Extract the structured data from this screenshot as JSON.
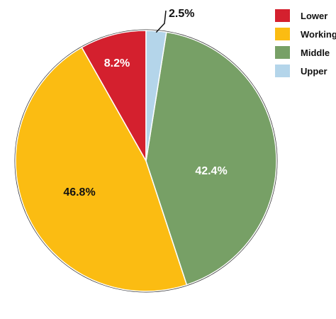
{
  "chart_data": {
    "type": "pie",
    "categories": [
      "Lower",
      "Working",
      "Middle",
      "Upper"
    ],
    "values": [
      8.2,
      46.8,
      42.4,
      2.5
    ],
    "value_labels": [
      "8.2%",
      "46.8%",
      "42.4%",
      "2.5%"
    ],
    "title": "",
    "legend_position": "top-right",
    "start_angle_deg": 0,
    "direction": "counterclockwise-from-top",
    "colors": {
      "Lower": "#d4202e",
      "Working": "#fbbc12",
      "Middle": "#77a066",
      "Upper": "#b4d5ea"
    },
    "label_colors": {
      "Lower": "#ffffff",
      "Working": "#111111",
      "Middle": "#ffffff",
      "Upper": "#111111"
    },
    "outline_color": "#ffffff",
    "rim_color": "#333333"
  }
}
